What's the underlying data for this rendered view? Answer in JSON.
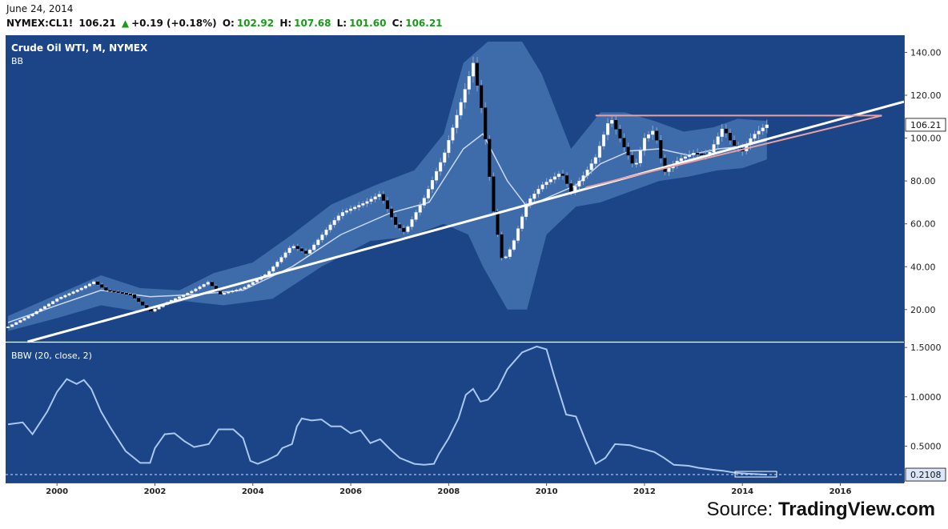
{
  "header": {
    "date": "June 24, 2014",
    "symbol": "NYMEX:CL1!",
    "last": "106.21",
    "change": "+0.19 (+0.18%)",
    "open_label": "O:",
    "open": "102.92",
    "high_label": "H:",
    "high": "107.68",
    "low_label": "L:",
    "low": "101.60",
    "close_label": "C:",
    "close": "106.21"
  },
  "source": {
    "prefix": "Source: ",
    "brand": "TradingView.com"
  },
  "colors": {
    "background": "#1c4587",
    "band": "#4a78b6",
    "up_candle": "#ffffff",
    "down_candle": "#000000",
    "trendline": "#ffffff",
    "resistance": "#e8a0a0",
    "bbw_line": "#a9c8f0"
  },
  "chart_data": [
    {
      "type": "candlestick",
      "title": "Crude Oil WTI, M, NYMEX",
      "indicator_label": "BB",
      "y_ticks": [
        "140.00",
        "120.00",
        "100.00",
        "80.00",
        "60.00",
        "40.00",
        "20.00"
      ],
      "y_range": [
        5,
        148
      ],
      "x_ticks": [
        "2000",
        "2002",
        "2004",
        "2006",
        "2008",
        "2010",
        "2012",
        "2014",
        "2016"
      ],
      "x_range": [
        1998.95,
        2017.3
      ],
      "last_price_label": "106.21",
      "candles_note": "monthly OHLC approximated from the screenshot",
      "anchors": [
        [
          1999.0,
          12
        ],
        [
          1999.5,
          18
        ],
        [
          2000.0,
          25
        ],
        [
          2000.5,
          30
        ],
        [
          2000.75,
          33
        ],
        [
          2001.0,
          29
        ],
        [
          2001.5,
          27
        ],
        [
          2001.9,
          19
        ],
        [
          2002.3,
          24
        ],
        [
          2002.7,
          28
        ],
        [
          2003.1,
          33
        ],
        [
          2003.3,
          27
        ],
        [
          2003.8,
          30
        ],
        [
          2004.3,
          37
        ],
        [
          2004.8,
          50
        ],
        [
          2005.1,
          46
        ],
        [
          2005.6,
          60
        ],
        [
          2005.8,
          65
        ],
        [
          2006.3,
          70
        ],
        [
          2006.6,
          74
        ],
        [
          2006.9,
          60
        ],
        [
          2007.1,
          56
        ],
        [
          2007.5,
          72
        ],
        [
          2007.9,
          92
        ],
        [
          2008.2,
          113
        ],
        [
          2008.5,
          135
        ],
        [
          2008.7,
          110
        ],
        [
          2008.9,
          68
        ],
        [
          2009.1,
          42
        ],
        [
          2009.3,
          50
        ],
        [
          2009.6,
          70
        ],
        [
          2009.9,
          78
        ],
        [
          2010.3,
          84
        ],
        [
          2010.5,
          75
        ],
        [
          2010.8,
          84
        ],
        [
          2011.0,
          91
        ],
        [
          2011.3,
          110
        ],
        [
          2011.6,
          95
        ],
        [
          2011.8,
          86
        ],
        [
          2012.0,
          100
        ],
        [
          2012.2,
          104
        ],
        [
          2012.4,
          84
        ],
        [
          2012.7,
          90
        ],
        [
          2013.0,
          93
        ],
        [
          2013.3,
          92
        ],
        [
          2013.6,
          105
        ],
        [
          2013.8,
          97
        ],
        [
          2014.0,
          94
        ],
        [
          2014.2,
          101
        ],
        [
          2014.5,
          106.21
        ]
      ],
      "bb_mid": [
        [
          1999.0,
          14
        ],
        [
          2000.0,
          22
        ],
        [
          2000.9,
          29
        ],
        [
          2001.9,
          26
        ],
        [
          2002.8,
          27
        ],
        [
          2003.8,
          29
        ],
        [
          2004.8,
          40
        ],
        [
          2005.8,
          55
        ],
        [
          2006.8,
          65
        ],
        [
          2007.6,
          70
        ],
        [
          2008.3,
          95
        ],
        [
          2008.7,
          102
        ],
        [
          2009.2,
          80
        ],
        [
          2009.6,
          68
        ],
        [
          2010.0,
          72
        ],
        [
          2010.6,
          78
        ],
        [
          2011.1,
          88
        ],
        [
          2011.7,
          94
        ],
        [
          2012.3,
          95
        ],
        [
          2012.9,
          92
        ],
        [
          2013.5,
          95
        ],
        [
          2014.0,
          96
        ],
        [
          2014.5,
          99
        ]
      ],
      "bb_upper": [
        [
          1999.0,
          17
        ],
        [
          2000.0,
          27
        ],
        [
          2000.9,
          36
        ],
        [
          2001.7,
          30
        ],
        [
          2002.5,
          29
        ],
        [
          2003.2,
          37
        ],
        [
          2004.0,
          42
        ],
        [
          2004.8,
          55
        ],
        [
          2005.6,
          69
        ],
        [
          2006.5,
          78
        ],
        [
          2007.3,
          85
        ],
        [
          2007.9,
          102
        ],
        [
          2008.3,
          135
        ],
        [
          2008.8,
          145
        ],
        [
          2009.5,
          145
        ],
        [
          2009.9,
          130
        ],
        [
          2010.5,
          95
        ],
        [
          2011.1,
          112
        ],
        [
          2011.6,
          112
        ],
        [
          2012.2,
          108
        ],
        [
          2012.8,
          103
        ],
        [
          2013.4,
          105
        ],
        [
          2013.9,
          109
        ],
        [
          2014.5,
          108
        ]
      ],
      "bb_lower": [
        [
          1999.0,
          10
        ],
        [
          2000.0,
          16
        ],
        [
          2000.9,
          22
        ],
        [
          2001.7,
          19
        ],
        [
          2002.6,
          24
        ],
        [
          2003.4,
          22
        ],
        [
          2004.4,
          25
        ],
        [
          2005.4,
          40
        ],
        [
          2006.4,
          52
        ],
        [
          2007.2,
          54
        ],
        [
          2007.9,
          60
        ],
        [
          2008.4,
          55
        ],
        [
          2008.7,
          40
        ],
        [
          2009.2,
          20
        ],
        [
          2009.6,
          20
        ],
        [
          2010.0,
          55
        ],
        [
          2010.6,
          68
        ],
        [
          2011.1,
          70
        ],
        [
          2011.7,
          75
        ],
        [
          2012.3,
          80
        ],
        [
          2012.9,
          82
        ],
        [
          2013.5,
          85
        ],
        [
          2014.0,
          86
        ],
        [
          2014.5,
          90
        ]
      ],
      "trendline": {
        "from": [
          1999.4,
          5
        ],
        "to": [
          2017.3,
          117
        ]
      },
      "resistance": {
        "from": [
          2011.0,
          110.5
        ],
        "to": [
          2016.85,
          110.5
        ]
      },
      "support": {
        "from": [
          2010.8,
          77
        ],
        "to": [
          2016.85,
          110.5
        ]
      }
    },
    {
      "type": "line",
      "title": "BBW (20, close, 2)",
      "y_ticks": [
        "1.5000",
        "1.0000",
        "0.5000"
      ],
      "y_range": [
        0.13,
        1.55
      ],
      "last_value_label": "0.2108",
      "dashed_level": 0.2108,
      "points": [
        [
          1999.0,
          0.72
        ],
        [
          1999.3,
          0.74
        ],
        [
          1999.5,
          0.62
        ],
        [
          1999.8,
          0.85
        ],
        [
          2000.0,
          1.05
        ],
        [
          2000.2,
          1.18
        ],
        [
          2000.4,
          1.13
        ],
        [
          2000.55,
          1.17
        ],
        [
          2000.7,
          1.08
        ],
        [
          2000.9,
          0.85
        ],
        [
          2001.1,
          0.68
        ],
        [
          2001.4,
          0.45
        ],
        [
          2001.7,
          0.33
        ],
        [
          2001.9,
          0.33
        ],
        [
          2002.0,
          0.48
        ],
        [
          2002.2,
          0.62
        ],
        [
          2002.4,
          0.63
        ],
        [
          2002.6,
          0.55
        ],
        [
          2002.8,
          0.49
        ],
        [
          2003.1,
          0.52
        ],
        [
          2003.3,
          0.67
        ],
        [
          2003.6,
          0.67
        ],
        [
          2003.8,
          0.58
        ],
        [
          2003.95,
          0.35
        ],
        [
          2004.1,
          0.32
        ],
        [
          2004.3,
          0.36
        ],
        [
          2004.5,
          0.41
        ],
        [
          2004.6,
          0.48
        ],
        [
          2004.8,
          0.52
        ],
        [
          2004.9,
          0.7
        ],
        [
          2005.0,
          0.78
        ],
        [
          2005.2,
          0.76
        ],
        [
          2005.4,
          0.77
        ],
        [
          2005.6,
          0.7
        ],
        [
          2005.8,
          0.7
        ],
        [
          2006.0,
          0.63
        ],
        [
          2006.2,
          0.66
        ],
        [
          2006.4,
          0.53
        ],
        [
          2006.6,
          0.57
        ],
        [
          2006.8,
          0.47
        ],
        [
          2007.0,
          0.38
        ],
        [
          2007.3,
          0.32
        ],
        [
          2007.5,
          0.31
        ],
        [
          2007.7,
          0.32
        ],
        [
          2007.8,
          0.42
        ],
        [
          2008.0,
          0.58
        ],
        [
          2008.2,
          0.78
        ],
        [
          2008.35,
          1.02
        ],
        [
          2008.5,
          1.08
        ],
        [
          2008.65,
          0.95
        ],
        [
          2008.8,
          0.97
        ],
        [
          2009.0,
          1.08
        ],
        [
          2009.2,
          1.28
        ],
        [
          2009.5,
          1.45
        ],
        [
          2009.8,
          1.51
        ],
        [
          2010.0,
          1.48
        ],
        [
          2010.15,
          1.22
        ],
        [
          2010.4,
          0.82
        ],
        [
          2010.6,
          0.8
        ],
        [
          2010.8,
          0.55
        ],
        [
          2011.0,
          0.32
        ],
        [
          2011.2,
          0.38
        ],
        [
          2011.4,
          0.52
        ],
        [
          2011.7,
          0.51
        ],
        [
          2011.9,
          0.48
        ],
        [
          2012.2,
          0.44
        ],
        [
          2012.4,
          0.38
        ],
        [
          2012.6,
          0.31
        ],
        [
          2012.9,
          0.3
        ],
        [
          2013.1,
          0.28
        ],
        [
          2013.4,
          0.26
        ],
        [
          2013.6,
          0.25
        ],
        [
          2013.85,
          0.23
        ],
        [
          2014.1,
          0.22
        ],
        [
          2014.5,
          0.21
        ]
      ]
    }
  ]
}
